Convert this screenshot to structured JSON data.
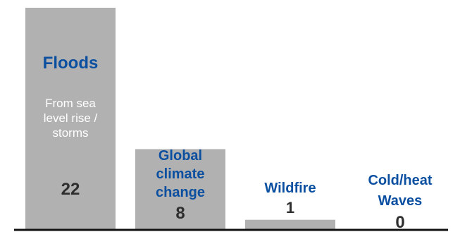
{
  "chart_data": {
    "type": "bar",
    "categories": [
      "Floods",
      "Global climate change",
      "Wildfire",
      "Cold/heat Waves"
    ],
    "values": [
      22,
      8,
      1,
      0
    ],
    "category_lines": [
      [
        "Floods"
      ],
      [
        "Global",
        "climate",
        "change"
      ],
      [
        "Wildfire"
      ],
      [
        "Cold/heat",
        "Waves"
      ]
    ],
    "subtitle_lines": [
      [
        "From sea",
        "level rise /",
        "storms"
      ],
      [],
      [],
      []
    ],
    "title": "",
    "xlabel": "",
    "ylabel": "",
    "ylim": [
      0,
      22
    ],
    "grid": false,
    "legend": "none"
  },
  "colors": {
    "bar": "#b1b1b1",
    "category_text": "#0b4fa0",
    "value_text": "#2e2e2e",
    "subtitle_text": "#ffffff",
    "baseline": "#111111"
  }
}
